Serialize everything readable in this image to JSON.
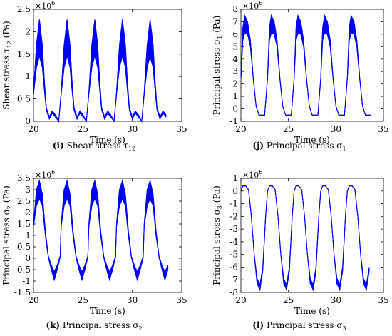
{
  "chart_data": [
    {
      "type": "line",
      "caption_tag": "(i)",
      "caption_text": "Shear stress τ",
      "caption_sub": "12",
      "ylabel": "Shear stress  τ",
      "ylabel_sub": "12",
      "ylabel_unit": " (Pa)",
      "xlabel": "Time (s)",
      "multiplier": "×10",
      "multiplier_exp": "6",
      "xlim": [
        20,
        35
      ],
      "ylim": [
        0,
        2.5
      ],
      "xticks": [
        "20",
        "25",
        "30",
        "35"
      ],
      "yticks": [
        "0",
        "0.5",
        "1",
        "1.5",
        "2",
        "2.5"
      ],
      "color": "#0000ff",
      "period": 2.8,
      "x_start": 20.0,
      "x_end": 33.7,
      "series": [
        {
          "x": [
            20.0,
            20.3,
            20.6,
            20.9,
            21.1,
            21.3,
            21.6,
            21.9,
            22.2,
            22.55,
            22.9
          ],
          "upper": [
            0.65,
            1.7,
            2.27,
            1.7,
            0.9,
            0.3,
            0.1,
            0.23,
            0.15,
            0.0,
            0.6
          ],
          "lower": [
            0.6,
            1.2,
            1.45,
            1.2,
            0.7,
            0.25,
            0.05,
            0.18,
            0.1,
            0.0,
            0.55
          ]
        }
      ]
    },
    {
      "type": "line",
      "caption_tag": "(j)",
      "caption_text": "Principal stress σ",
      "caption_sub": "1",
      "ylabel": "Principal stress  σ",
      "ylabel_sub": "1",
      "ylabel_unit": " (Pa)",
      "xlabel": "Time (s)",
      "multiplier": "×10",
      "multiplier_exp": "6",
      "xlim": [
        20,
        35
      ],
      "ylim": [
        -1,
        8
      ],
      "xticks": [
        "20",
        "25",
        "30",
        "35"
      ],
      "yticks": [
        "-1",
        "0",
        "1",
        "2",
        "3",
        "4",
        "5",
        "6",
        "7",
        "8"
      ],
      "color": "#0000ff",
      "period": 2.8,
      "x_start": 20.0,
      "x_end": 33.7,
      "series": [
        {
          "x": [
            20.0,
            20.2,
            20.4,
            20.7,
            21.0,
            21.3,
            21.6,
            21.9,
            22.2,
            22.5,
            22.8
          ],
          "upper": [
            2.5,
            6.5,
            7.5,
            7.0,
            5.5,
            2.5,
            0.2,
            -0.5,
            -0.5,
            -0.5,
            2.5
          ],
          "lower": [
            2.4,
            5.5,
            6.1,
            6.0,
            5.0,
            2.4,
            0.2,
            -0.5,
            -0.5,
            -0.5,
            2.4
          ]
        }
      ]
    },
    {
      "type": "line",
      "caption_tag": "(k)",
      "caption_text": "Principal stress σ",
      "caption_sub": "2",
      "ylabel": "Principal stress  σ",
      "ylabel_sub": "2",
      "ylabel_unit": " (Pa)",
      "xlabel": "Time (s)",
      "multiplier": "×10",
      "multiplier_exp": "6",
      "xlim": [
        20,
        35
      ],
      "ylim": [
        -1.5,
        3.5
      ],
      "xticks": [
        "20",
        "25",
        "30",
        "35"
      ],
      "yticks": [
        "-1.5",
        "-1",
        "-0.5",
        "0",
        "0.5",
        "1",
        "1.5",
        "2",
        "2.5",
        "3",
        "3.5"
      ],
      "color": "#0000ff",
      "period": 2.8,
      "x_start": 20.0,
      "x_end": 33.7,
      "series": [
        {
          "x": [
            20.0,
            20.3,
            20.6,
            20.9,
            21.2,
            21.5,
            21.8,
            22.1,
            22.4,
            22.7,
            22.8
          ],
          "upper": [
            1.5,
            3.0,
            3.4,
            2.8,
            1.2,
            0.1,
            -0.3,
            -0.6,
            -0.3,
            0.1,
            1.5
          ],
          "lower": [
            1.4,
            2.3,
            2.6,
            2.3,
            1.0,
            0.05,
            -0.5,
            -0.95,
            -0.5,
            0.05,
            1.4
          ]
        }
      ]
    },
    {
      "type": "line",
      "caption_tag": "(l)",
      "caption_text": "Principal stress σ",
      "caption_sub": "3",
      "ylabel": "Principal stress  σ",
      "ylabel_sub": "3",
      "ylabel_unit": " (Pa)",
      "xlabel": "Time (s)",
      "multiplier": "×10",
      "multiplier_exp": "6",
      "xlim": [
        20,
        35
      ],
      "ylim": [
        -8,
        1
      ],
      "xticks": [
        "20",
        "25",
        "30",
        "35"
      ],
      "yticks": [
        "-8",
        "-7",
        "-6",
        "-5",
        "-4",
        "-3",
        "-2",
        "-1",
        "0",
        "1"
      ],
      "color": "#0000ff",
      "period": 2.8,
      "x_start": 20.0,
      "x_end": 33.7,
      "series": [
        {
          "x": [
            20.0,
            20.2,
            20.5,
            20.8,
            21.1,
            21.4,
            21.7,
            22.0,
            22.3,
            22.6,
            22.8
          ],
          "upper": [
            0.0,
            0.4,
            0.4,
            0.1,
            -2.0,
            -5.0,
            -6.9,
            -7.4,
            -6.0,
            -2.0,
            0.0
          ],
          "lower": [
            0.0,
            0.4,
            0.4,
            0.1,
            -2.0,
            -5.0,
            -7.3,
            -7.8,
            -6.3,
            -2.0,
            0.0
          ]
        }
      ]
    }
  ]
}
